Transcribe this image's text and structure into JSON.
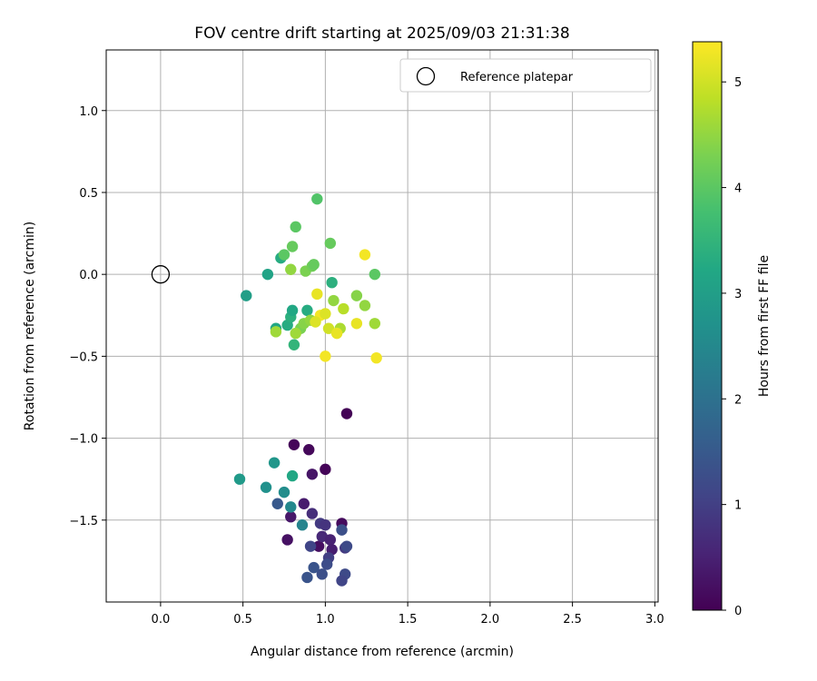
{
  "chart_data": {
    "type": "scatter",
    "title": "FOV centre drift starting at 2025/09/03 21:31:38",
    "xlabel": "Angular distance from reference (arcmin)",
    "ylabel": "Rotation from reference (arcmin)",
    "xlim": [
      -0.33,
      3.02
    ],
    "ylim": [
      -2.0,
      1.37
    ],
    "xticks": [
      0.0,
      0.5,
      1.0,
      1.5,
      2.0,
      2.5,
      3.0
    ],
    "xtick_labels": [
      "0.0",
      "0.5",
      "1.0",
      "1.5",
      "2.0",
      "2.5",
      "3.0"
    ],
    "yticks": [
      -1.5,
      -1.0,
      -0.5,
      0.0,
      0.5,
      1.0
    ],
    "ytick_labels": [
      "−1.5",
      "−1.0",
      "−0.5",
      "0.0",
      "0.5",
      "1.0"
    ],
    "grid": true,
    "legend": {
      "position": "top-right",
      "entries": [
        {
          "label": "Reference platepar",
          "marker": "open-circle"
        }
      ]
    },
    "reference_point": {
      "x": 0.0,
      "y": 0.0
    },
    "colorbar": {
      "label": "Hours from first FF file",
      "colormap": "viridis",
      "range": [
        0,
        5.38
      ],
      "ticks": [
        0,
        1,
        2,
        3,
        4,
        5
      ],
      "tick_labels": [
        "0",
        "1",
        "2",
        "3",
        "4",
        "5"
      ]
    },
    "points": [
      {
        "x": 1.13,
        "y": -0.85,
        "c": 0.03
      },
      {
        "x": 0.81,
        "y": -1.04,
        "c": 0.08
      },
      {
        "x": 0.9,
        "y": -1.07,
        "c": 0.1
      },
      {
        "x": 1.0,
        "y": -1.19,
        "c": 0.05
      },
      {
        "x": 0.92,
        "y": -1.22,
        "c": 0.3
      },
      {
        "x": 1.1,
        "y": -1.52,
        "c": 0.15
      },
      {
        "x": 0.87,
        "y": -1.4,
        "c": 0.4
      },
      {
        "x": 0.79,
        "y": -1.48,
        "c": 0.35
      },
      {
        "x": 0.92,
        "y": -1.46,
        "c": 0.7
      },
      {
        "x": 0.97,
        "y": -1.52,
        "c": 0.9
      },
      {
        "x": 1.0,
        "y": -1.53,
        "c": 0.8
      },
      {
        "x": 0.77,
        "y": -1.62,
        "c": 0.25
      },
      {
        "x": 0.96,
        "y": -1.66,
        "c": 0.2
      },
      {
        "x": 0.98,
        "y": -1.6,
        "c": 0.6
      },
      {
        "x": 1.03,
        "y": -1.62,
        "c": 0.5
      },
      {
        "x": 1.04,
        "y": -1.68,
        "c": 0.45
      },
      {
        "x": 0.91,
        "y": -1.66,
        "c": 1.1
      },
      {
        "x": 1.1,
        "y": -1.56,
        "c": 1.3
      },
      {
        "x": 1.12,
        "y": -1.67,
        "c": 0.9
      },
      {
        "x": 1.13,
        "y": -1.66,
        "c": 1.2
      },
      {
        "x": 1.02,
        "y": -1.73,
        "c": 1.0
      },
      {
        "x": 1.01,
        "y": -1.77,
        "c": 1.25
      },
      {
        "x": 0.93,
        "y": -1.79,
        "c": 1.4
      },
      {
        "x": 0.98,
        "y": -1.83,
        "c": 1.3
      },
      {
        "x": 0.89,
        "y": -1.85,
        "c": 1.4
      },
      {
        "x": 1.12,
        "y": -1.83,
        "c": 1.2
      },
      {
        "x": 1.1,
        "y": -1.87,
        "c": 1.1
      },
      {
        "x": 0.71,
        "y": -1.4,
        "c": 1.5
      },
      {
        "x": 0.86,
        "y": -1.53,
        "c": 2.4
      },
      {
        "x": 0.79,
        "y": -1.42,
        "c": 2.5
      },
      {
        "x": 0.75,
        "y": -1.33,
        "c": 2.6
      },
      {
        "x": 0.64,
        "y": -1.3,
        "c": 2.7
      },
      {
        "x": 0.69,
        "y": -1.15,
        "c": 2.8
      },
      {
        "x": 0.48,
        "y": -1.25,
        "c": 2.9
      },
      {
        "x": 0.8,
        "y": -1.23,
        "c": 3.2
      },
      {
        "x": 0.52,
        "y": -0.13,
        "c": 3.0
      },
      {
        "x": 0.65,
        "y": 0.0,
        "c": 3.1
      },
      {
        "x": 0.73,
        "y": 0.1,
        "c": 3.3
      },
      {
        "x": 0.7,
        "y": -0.33,
        "c": 3.2
      },
      {
        "x": 0.77,
        "y": -0.31,
        "c": 3.3
      },
      {
        "x": 0.79,
        "y": -0.26,
        "c": 3.4
      },
      {
        "x": 0.8,
        "y": -0.22,
        "c": 3.2
      },
      {
        "x": 0.81,
        "y": -0.43,
        "c": 3.5
      },
      {
        "x": 0.89,
        "y": -0.22,
        "c": 3.3
      },
      {
        "x": 1.04,
        "y": -0.05,
        "c": 3.4
      },
      {
        "x": 0.75,
        "y": 0.12,
        "c": 4.0
      },
      {
        "x": 0.8,
        "y": 0.17,
        "c": 4.1
      },
      {
        "x": 0.82,
        "y": 0.29,
        "c": 4.0
      },
      {
        "x": 0.95,
        "y": 0.46,
        "c": 3.9
      },
      {
        "x": 1.03,
        "y": 0.19,
        "c": 4.1
      },
      {
        "x": 0.79,
        "y": 0.03,
        "c": 4.5
      },
      {
        "x": 0.88,
        "y": 0.02,
        "c": 4.3
      },
      {
        "x": 0.92,
        "y": 0.05,
        "c": 4.2
      },
      {
        "x": 0.93,
        "y": 0.06,
        "c": 4.1
      },
      {
        "x": 1.3,
        "y": 0.0,
        "c": 4.0
      },
      {
        "x": 0.85,
        "y": -0.33,
        "c": 4.3
      },
      {
        "x": 0.82,
        "y": -0.36,
        "c": 4.6
      },
      {
        "x": 0.87,
        "y": -0.3,
        "c": 4.4
      },
      {
        "x": 0.91,
        "y": -0.28,
        "c": 4.5
      },
      {
        "x": 0.7,
        "y": -0.35,
        "c": 4.6
      },
      {
        "x": 1.05,
        "y": -0.16,
        "c": 4.5
      },
      {
        "x": 1.09,
        "y": -0.33,
        "c": 4.7
      },
      {
        "x": 1.11,
        "y": -0.21,
        "c": 4.8
      },
      {
        "x": 1.19,
        "y": -0.13,
        "c": 4.4
      },
      {
        "x": 1.24,
        "y": -0.19,
        "c": 4.5
      },
      {
        "x": 1.3,
        "y": -0.3,
        "c": 4.6
      },
      {
        "x": 0.95,
        "y": -0.12,
        "c": 5.2
      },
      {
        "x": 0.97,
        "y": -0.25,
        "c": 5.3
      },
      {
        "x": 1.0,
        "y": -0.24,
        "c": 5.1
      },
      {
        "x": 1.02,
        "y": -0.33,
        "c": 5.0
      },
      {
        "x": 1.07,
        "y": -0.36,
        "c": 5.2
      },
      {
        "x": 0.94,
        "y": -0.29,
        "c": 5.1
      },
      {
        "x": 1.0,
        "y": -0.5,
        "c": 5.3
      },
      {
        "x": 1.19,
        "y": -0.3,
        "c": 5.2
      },
      {
        "x": 1.24,
        "y": 0.12,
        "c": 5.3
      },
      {
        "x": 1.31,
        "y": -0.51,
        "c": 5.3
      }
    ]
  }
}
